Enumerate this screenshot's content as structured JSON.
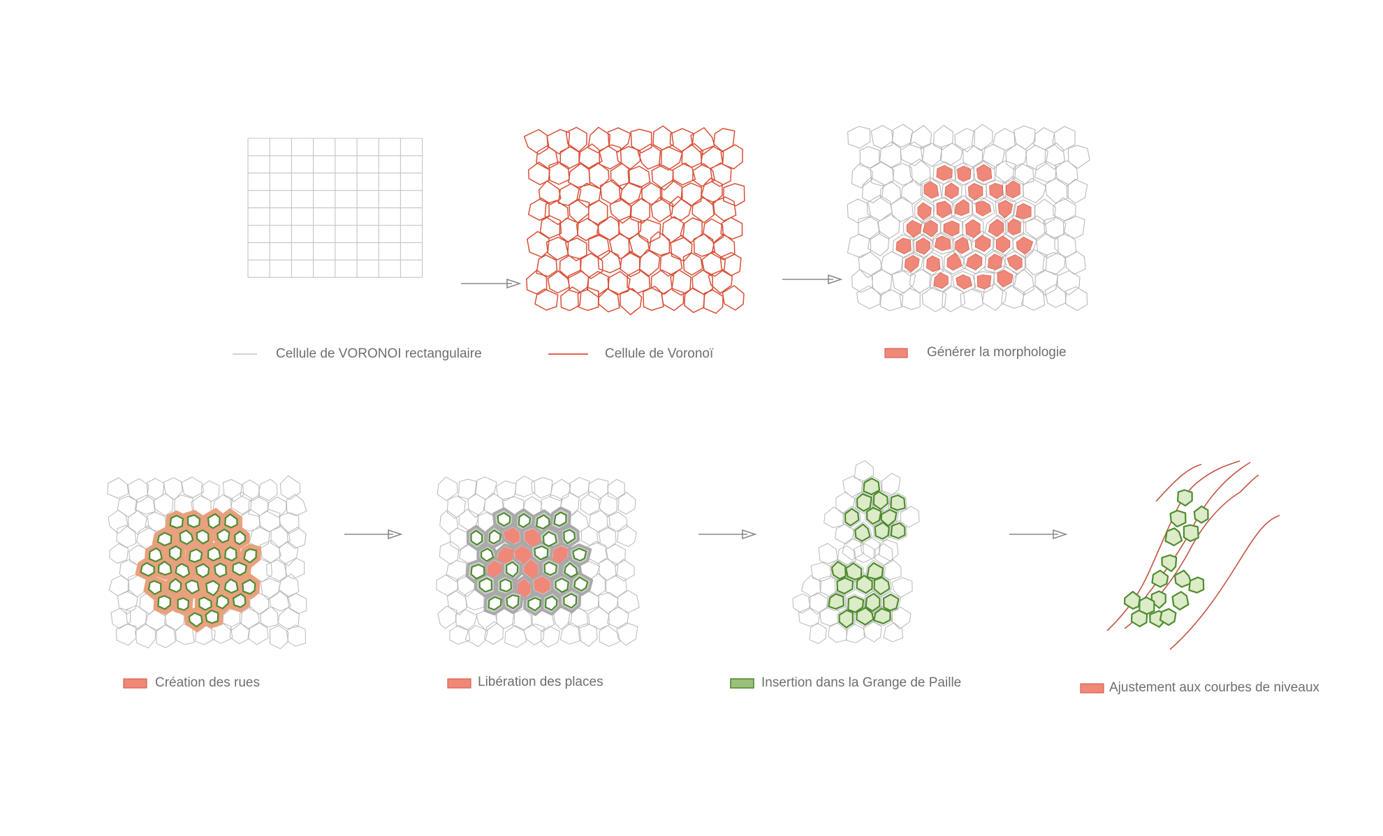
{
  "colors": {
    "grid_line": "#c4c4c4",
    "cell_line": "#d94f36",
    "faint_cell": "#b8b8b8",
    "morph_fill": "#f0887a",
    "morph_stroke": "#d9604a",
    "street_fill": "#e8a07e",
    "block_stroke": "#4e8c2f",
    "block_fill": "#ffffff",
    "block_fill_green": "#dcebc8",
    "gray_band": "#a9a9a9",
    "arrow": "#888888",
    "contour": "#c0533f"
  },
  "steps": [
    {
      "label": "Cellule de VORONOI rectangulaire",
      "legend": "line-gray"
    },
    {
      "label": "Cellule de Voronoï",
      "legend": "line-red"
    },
    {
      "label": "Générer la morphologie",
      "legend": "swatch-salmon"
    },
    {
      "label": "Création des rues",
      "legend": "swatch-salmon"
    },
    {
      "label": "Libération des places",
      "legend": "swatch-salmon"
    },
    {
      "label": "Insertion dans la Grange de Paille",
      "legend": "swatch-green"
    },
    {
      "label": "Ajustement aux courbes de niveaux",
      "legend": "swatch-salmon"
    }
  ],
  "icons": {
    "arrow": "arrow-right-icon"
  }
}
